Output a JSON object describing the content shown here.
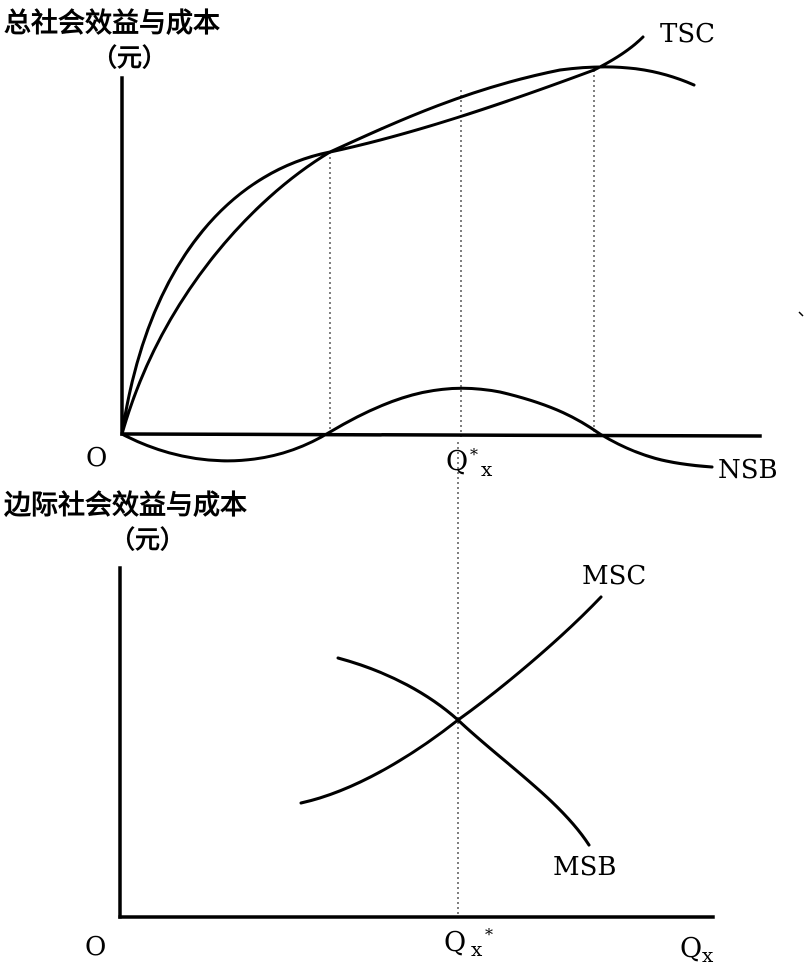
{
  "top_panel": {
    "ylabel_line1": "总社会效益与成本",
    "ylabel_line2": "（元）",
    "origin": "O",
    "curve_tsc": "TSC",
    "curve_nsb": "NSB",
    "q_star": "Q",
    "q_star_sup": "*",
    "q_star_sub": "x"
  },
  "bottom_panel": {
    "ylabel_line1": "边际社会效益与成本",
    "ylabel_line2": "（元）",
    "origin": "O",
    "curve_msc": "MSC",
    "curve_msb": "MSB",
    "q_star": "Q",
    "q_star_sub": "x",
    "q_star_sup": "*",
    "xlabel": "Q",
    "xlabel_sub": "x"
  }
}
